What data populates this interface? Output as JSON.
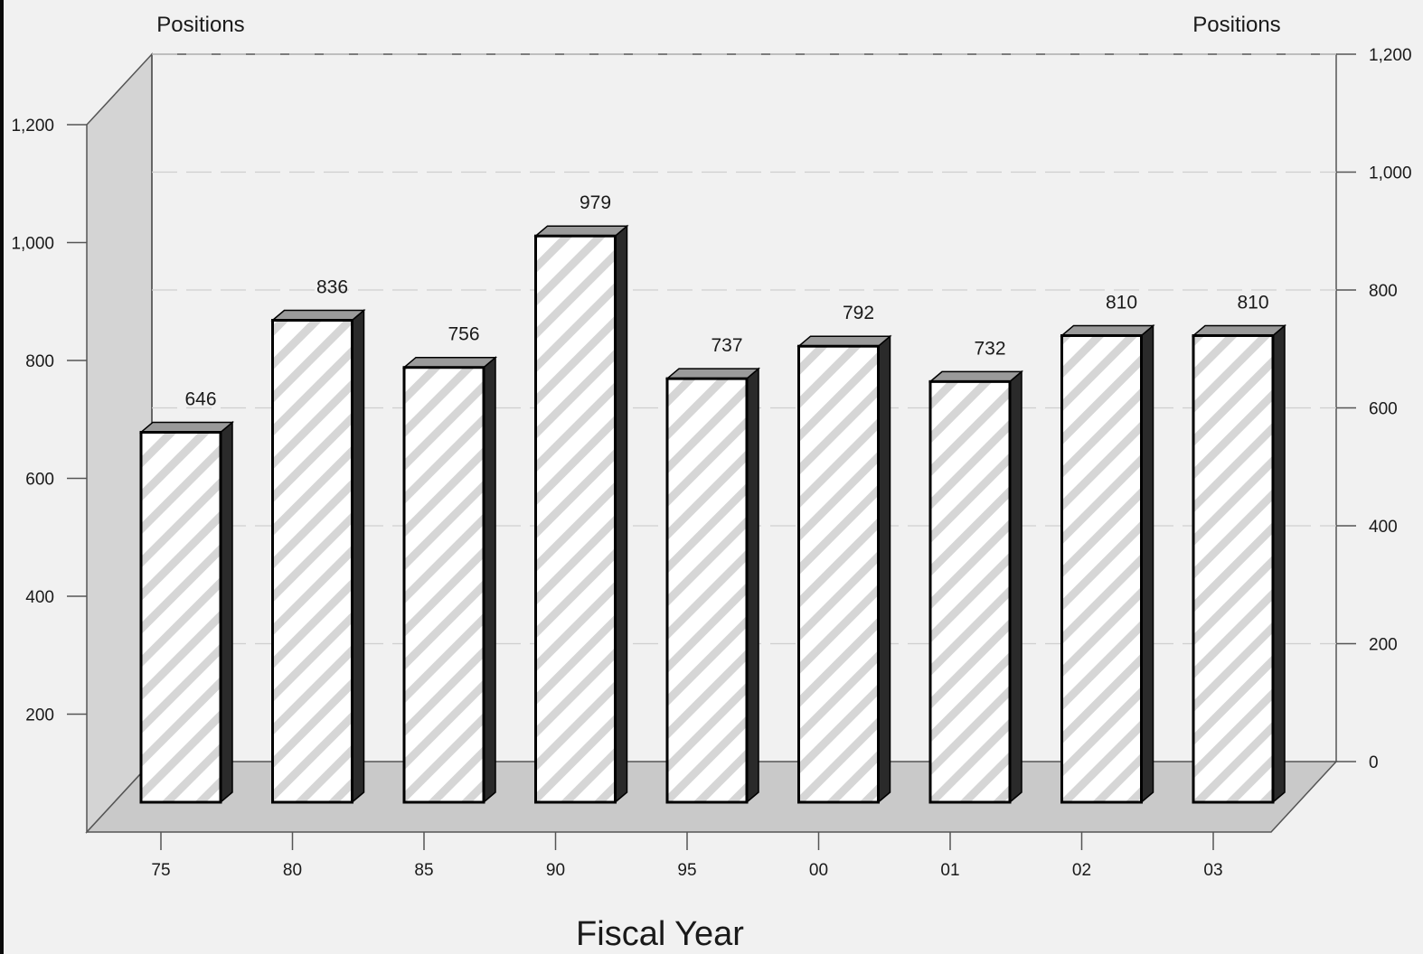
{
  "chart_data": {
    "type": "bar",
    "style": "3d",
    "categories": [
      "75",
      "80",
      "85",
      "90",
      "95",
      "00",
      "01",
      "02",
      "03"
    ],
    "values": [
      646,
      836,
      756,
      979,
      737,
      792,
      732,
      810,
      810
    ],
    "data_labels": [
      "646",
      "836",
      "756",
      "979",
      "737",
      "792",
      "732",
      "810",
      "810"
    ],
    "xlabel": "Fiscal Year",
    "ylabel_left": "Positions",
    "ylabel_right": "Positions",
    "ylim": [
      0,
      1200
    ],
    "left_ticks": [
      "200",
      "400",
      "600",
      "800",
      "1,000",
      "1,200"
    ],
    "right_ticks": [
      "0",
      "200",
      "400",
      "600",
      "800",
      "1,000",
      "1,200"
    ],
    "grid": true,
    "colors": {
      "background": "#f1f1f1",
      "bar_face": "#ffffff",
      "bar_hatch": "#d6d6d6",
      "bar_top": "#9a9a9a",
      "bar_side": "#2a2a2a",
      "floor": "#c9c9c9",
      "side_wall": "#d4d4d4",
      "axis": "#555555",
      "gridline": "#cfcfcf"
    }
  }
}
